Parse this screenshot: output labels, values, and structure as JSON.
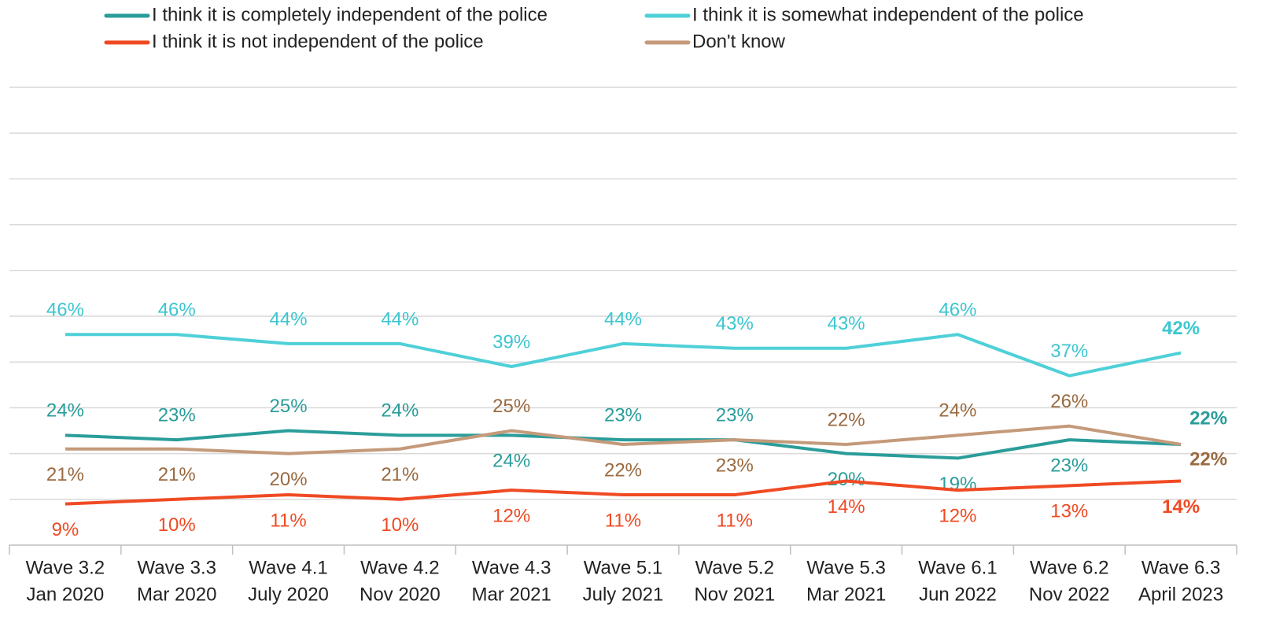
{
  "chart_data": {
    "type": "line",
    "categories": [
      [
        "Wave 3.2",
        "Jan 2020"
      ],
      [
        "Wave 3.3",
        "Mar 2020"
      ],
      [
        "Wave 4.1",
        "July 2020"
      ],
      [
        "Wave 4.2",
        "Nov 2020"
      ],
      [
        "Wave 4.3",
        "Mar 2021"
      ],
      [
        "Wave 5.1",
        "July 2021"
      ],
      [
        "Wave 5.2",
        "Nov 2021"
      ],
      [
        "Wave 5.3",
        "Mar 2021"
      ],
      [
        "Wave 6.1",
        "Jun 2022"
      ],
      [
        "Wave 6.2",
        "Nov 2022"
      ],
      [
        "Wave 6.3",
        "April 2023"
      ]
    ],
    "series": [
      {
        "name": "I think it is completely independent of the police",
        "color": "#2a9d9a",
        "label_color": "#2a9d9a",
        "values": [
          24,
          23,
          25,
          24,
          24,
          23,
          23,
          20,
          19,
          23,
          22
        ],
        "value_labels": [
          "24%",
          "23%",
          "25%",
          "24%",
          "24%",
          "23%",
          "23%",
          "20%",
          "19%",
          "23%",
          "22%"
        ]
      },
      {
        "name": "I think it is somewhat independent of the police",
        "color": "#4fd0d8",
        "label_color": "#3cc6d0",
        "values": [
          46,
          46,
          44,
          44,
          39,
          44,
          43,
          43,
          46,
          37,
          42
        ],
        "value_labels": [
          "46%",
          "46%",
          "44%",
          "44%",
          "39%",
          "44%",
          "43%",
          "43%",
          "46%",
          "37%",
          "42%"
        ]
      },
      {
        "name": "I think it is not independent of the police",
        "color": "#f04a23",
        "label_color": "#f04a23",
        "values": [
          9,
          10,
          11,
          10,
          12,
          11,
          11,
          14,
          12,
          13,
          14
        ],
        "value_labels": [
          "9%",
          "10%",
          "11%",
          "10%",
          "12%",
          "11%",
          "11%",
          "14%",
          "12%",
          "13%",
          "14%"
        ]
      },
      {
        "name": "Don't know",
        "color": "#c49a7a",
        "label_color": "#9a6a40",
        "values": [
          21,
          21,
          20,
          21,
          25,
          22,
          23,
          22,
          24,
          26,
          22
        ],
        "value_labels": [
          "21%",
          "21%",
          "20%",
          "21%",
          "25%",
          "22%",
          "23%",
          "22%",
          "24%",
          "26%",
          "22%"
        ]
      }
    ],
    "ylim": [
      0,
      100
    ],
    "yticks": [
      0,
      10,
      20,
      30,
      40,
      50,
      60,
      70,
      80,
      90,
      100
    ],
    "grid": true
  }
}
